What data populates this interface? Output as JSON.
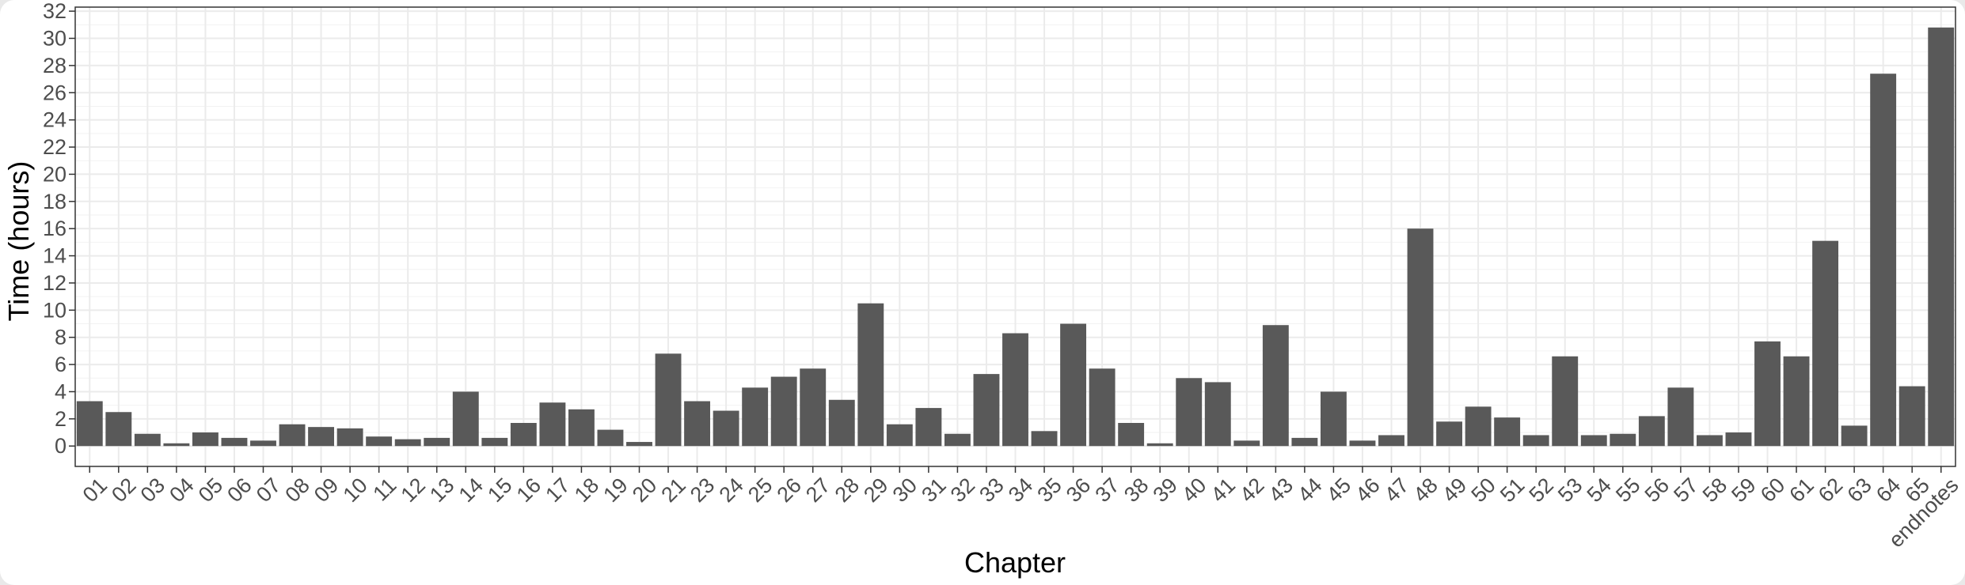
{
  "chart_data": {
    "type": "bar",
    "xlabel": "Chapter",
    "ylabel": "Time (hours)",
    "ylim": [
      -1.5,
      32.3
    ],
    "yticks": [
      0,
      2,
      4,
      6,
      8,
      10,
      12,
      14,
      16,
      18,
      20,
      22,
      24,
      26,
      28,
      30,
      32
    ],
    "grid": true,
    "legend": "none",
    "bar_color": "#595959",
    "categories": [
      "01",
      "02",
      "03",
      "04",
      "05",
      "06",
      "07",
      "08",
      "09",
      "10",
      "11",
      "12",
      "13",
      "14",
      "15",
      "16",
      "17",
      "18",
      "19",
      "20",
      "21",
      "23",
      "24",
      "25",
      "26",
      "27",
      "28",
      "29",
      "30",
      "31",
      "32",
      "33",
      "34",
      "35",
      "36",
      "37",
      "38",
      "39",
      "40",
      "41",
      "42",
      "43",
      "44",
      "45",
      "46",
      "47",
      "48",
      "49",
      "50",
      "51",
      "52",
      "53",
      "54",
      "55",
      "56",
      "57",
      "58",
      "59",
      "60",
      "61",
      "62",
      "63",
      "64",
      "65",
      "endnotes"
    ],
    "values": [
      3.3,
      2.5,
      0.9,
      0.2,
      1.0,
      0.6,
      0.4,
      1.6,
      1.4,
      1.3,
      0.7,
      0.5,
      0.6,
      4.0,
      0.6,
      1.7,
      3.2,
      2.7,
      1.2,
      0.3,
      6.8,
      3.3,
      2.6,
      4.3,
      5.1,
      5.7,
      3.4,
      10.5,
      1.6,
      2.8,
      0.9,
      5.3,
      8.3,
      1.1,
      9.0,
      5.7,
      1.7,
      0.2,
      5.0,
      4.7,
      0.4,
      8.9,
      0.6,
      4.0,
      0.4,
      0.8,
      16.0,
      1.8,
      2.9,
      2.1,
      0.8,
      6.6,
      0.8,
      0.9,
      2.2,
      4.3,
      0.8,
      1.0,
      7.7,
      6.6,
      15.1,
      1.5,
      27.4,
      4.4,
      30.8
    ]
  }
}
